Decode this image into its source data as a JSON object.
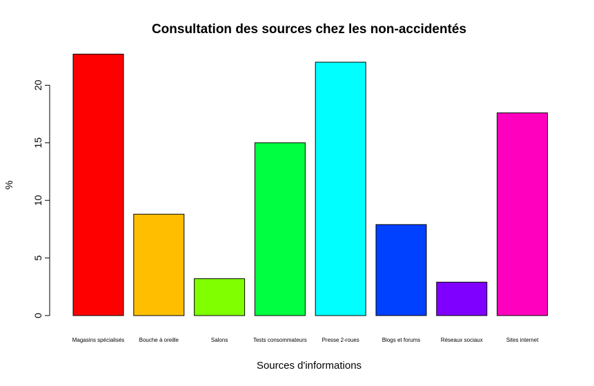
{
  "chart_data": {
    "type": "bar",
    "title": "Consultation des sources chez les non-accidentés",
    "xlabel": "Sources d'informations",
    "ylabel": "%",
    "categories": [
      "Magasins spécialisés",
      "Bouche à oreille",
      "Salons",
      "Tests consommateurs",
      "Presse 2-roues",
      "Blogs et forums",
      "Réseaux sociaux",
      "Sites internet"
    ],
    "values": [
      22.7,
      8.8,
      3.2,
      15.0,
      22.0,
      7.9,
      2.9,
      17.6
    ],
    "colors": [
      "#FF0000",
      "#FFBF00",
      "#80FF00",
      "#00FF40",
      "#00FFFF",
      "#0040FF",
      "#8000FF",
      "#FF00BF"
    ],
    "yticks": [
      0,
      5,
      10,
      15,
      20
    ],
    "ylim": [
      0,
      22.7
    ],
    "grid": false,
    "legend": "none"
  }
}
